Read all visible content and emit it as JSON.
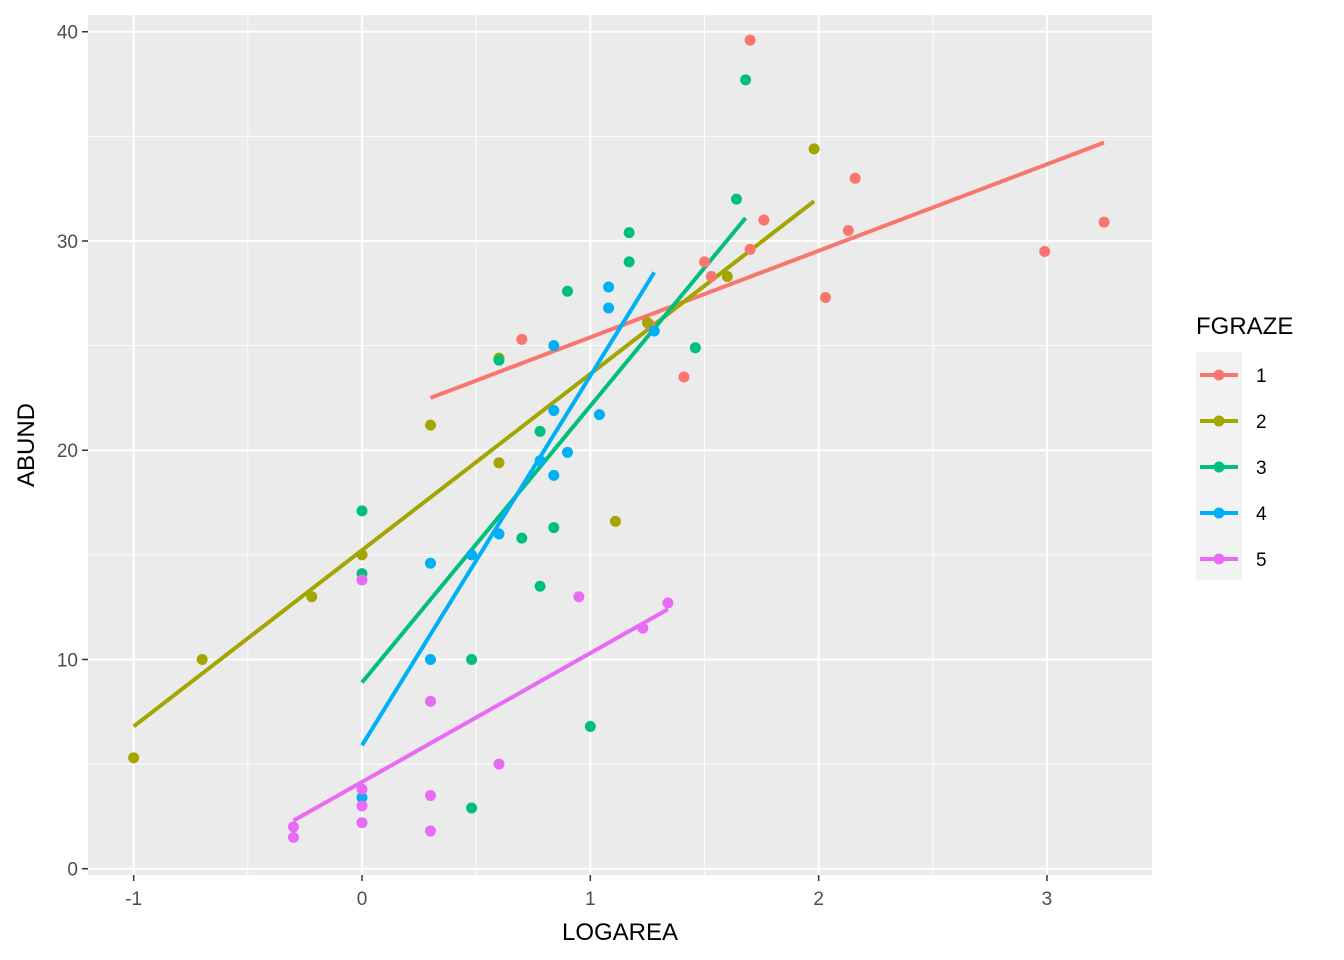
{
  "chart_data": {
    "type": "scatter",
    "title": "",
    "xlabel": "LOGAREA",
    "ylabel": "ABUND",
    "xlim": [
      -1.2,
      3.46
    ],
    "ylim": [
      -0.3,
      40.8
    ],
    "x_ticks": [
      -1,
      0,
      1,
      2,
      3
    ],
    "y_ticks": [
      0,
      10,
      20,
      30,
      40
    ],
    "x_tick_labels": [
      "-1",
      "0",
      "1",
      "2",
      "3"
    ],
    "y_tick_labels": [
      "0",
      "10",
      "20",
      "30",
      "40"
    ],
    "grid": true,
    "legend_title": "FGRAZE",
    "legend_position": "right",
    "series": [
      {
        "name": "1",
        "color": "#F8766D",
        "points": [
          [
            1.7,
            39.6
          ],
          [
            1.76,
            31.0
          ],
          [
            2.16,
            33.0
          ],
          [
            2.13,
            30.5
          ],
          [
            3.25,
            30.9
          ],
          [
            2.99,
            29.5
          ],
          [
            2.03,
            27.3
          ],
          [
            1.7,
            29.6
          ],
          [
            1.5,
            29.0
          ],
          [
            1.53,
            28.3
          ],
          [
            1.26,
            26.0
          ],
          [
            0.7,
            25.3
          ],
          [
            1.41,
            23.5
          ]
        ],
        "fit": [
          [
            0.3,
            22.5
          ],
          [
            3.25,
            34.7
          ]
        ]
      },
      {
        "name": "2",
        "color": "#A3A500",
        "points": [
          [
            1.98,
            34.4
          ],
          [
            1.6,
            28.3
          ],
          [
            1.25,
            26.1
          ],
          [
            0.6,
            24.4
          ],
          [
            0.3,
            21.2
          ],
          [
            0.6,
            19.4
          ],
          [
            1.11,
            16.6
          ],
          [
            0.0,
            15.0
          ],
          [
            -0.22,
            13.0
          ],
          [
            -0.7,
            10.0
          ],
          [
            -1.0,
            5.3
          ]
        ],
        "fit": [
          [
            -1.0,
            6.8
          ],
          [
            1.98,
            31.9
          ]
        ]
      },
      {
        "name": "3",
        "color": "#00BF7D",
        "points": [
          [
            1.68,
            37.7
          ],
          [
            1.64,
            32.0
          ],
          [
            1.17,
            30.4
          ],
          [
            1.17,
            29.0
          ],
          [
            0.9,
            27.6
          ],
          [
            1.46,
            24.9
          ],
          [
            0.78,
            20.9
          ],
          [
            0.84,
            16.3
          ],
          [
            0.7,
            15.8
          ],
          [
            0.0,
            17.1
          ],
          [
            0.0,
            14.1
          ],
          [
            0.78,
            13.5
          ],
          [
            0.48,
            10.0
          ],
          [
            1.0,
            6.8
          ],
          [
            0.48,
            2.9
          ],
          [
            0.6,
            24.3
          ]
        ],
        "fit": [
          [
            0.0,
            8.9
          ],
          [
            1.68,
            31.1
          ]
        ]
      },
      {
        "name": "4",
        "color": "#00B0F6",
        "points": [
          [
            1.08,
            27.8
          ],
          [
            1.08,
            26.8
          ],
          [
            1.28,
            25.7
          ],
          [
            0.84,
            25.0
          ],
          [
            0.84,
            21.9
          ],
          [
            1.04,
            21.7
          ],
          [
            0.9,
            19.9
          ],
          [
            0.78,
            19.5
          ],
          [
            0.84,
            18.8
          ],
          [
            0.6,
            16.0
          ],
          [
            0.48,
            15.0
          ],
          [
            0.3,
            14.6
          ],
          [
            0.3,
            10.0
          ],
          [
            0.0,
            3.4
          ]
        ],
        "fit": [
          [
            0.0,
            5.9
          ],
          [
            1.28,
            28.5
          ]
        ]
      },
      {
        "name": "5",
        "color": "#E76BF3",
        "points": [
          [
            1.34,
            12.7
          ],
          [
            1.23,
            11.5
          ],
          [
            0.95,
            13.0
          ],
          [
            0.0,
            13.8
          ],
          [
            0.3,
            8.0
          ],
          [
            0.6,
            5.0
          ],
          [
            0.0,
            3.8
          ],
          [
            0.3,
            3.5
          ],
          [
            0.0,
            3.0
          ],
          [
            0.0,
            2.2
          ],
          [
            0.3,
            1.8
          ],
          [
            -0.3,
            2.0
          ],
          [
            -0.3,
            1.5
          ]
        ],
        "fit": [
          [
            -0.3,
            2.3
          ],
          [
            1.34,
            12.4
          ]
        ]
      }
    ]
  }
}
